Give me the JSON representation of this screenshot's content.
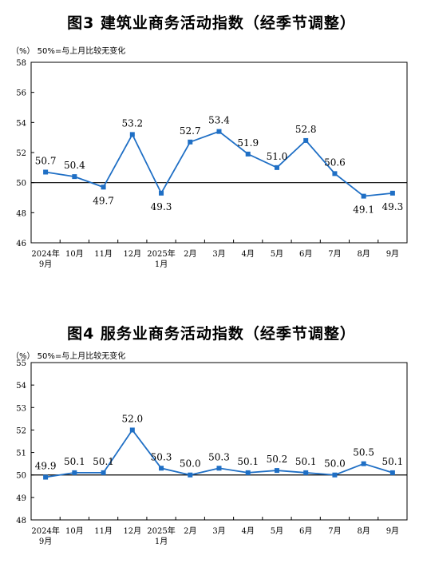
{
  "chart_data": [
    {
      "type": "line",
      "title": "图3 建筑业商务活动指数（经季节调整）",
      "note": "（%） 50%=与上月比较无变化",
      "categories": [
        "2024年\n9月",
        "10月",
        "11月",
        "12月",
        "2025年\n1月",
        "2月",
        "3月",
        "4月",
        "5月",
        "6月",
        "7月",
        "8月",
        "9月"
      ],
      "values": [
        50.7,
        50.4,
        49.7,
        53.2,
        49.3,
        52.7,
        53.4,
        51.9,
        51.0,
        52.8,
        50.6,
        49.1,
        49.3
      ],
      "value_labels": [
        "50.7",
        "50.4",
        "49.7",
        "53.2",
        "49.3",
        "52.7",
        "53.4",
        "51.9",
        "51.0",
        "52.8",
        "50.6",
        "49.1",
        "49.3"
      ],
      "yticks": [
        46,
        48,
        50,
        52,
        54,
        56,
        58
      ],
      "ylim": [
        46,
        58
      ],
      "reference_line": 50,
      "line_color": "#1f6fc5",
      "grid": false
    },
    {
      "type": "line",
      "title": "图4 服务业商务活动指数（经季节调整）",
      "note": "（%） 50%=与上月比较无变化",
      "categories": [
        "2024年\n9月",
        "10月",
        "11月",
        "12月",
        "2025年\n1月",
        "2月",
        "3月",
        "4月",
        "5月",
        "6月",
        "7月",
        "8月",
        "9月"
      ],
      "values": [
        49.9,
        50.1,
        50.1,
        52.0,
        50.3,
        50.0,
        50.3,
        50.1,
        50.2,
        50.1,
        50.0,
        50.5,
        50.1
      ],
      "value_labels": [
        "49.9",
        "50.1",
        "50.1",
        "52.0",
        "50.3",
        "50.0",
        "50.3",
        "50.1",
        "50.2",
        "50.1",
        "50.0",
        "50.5",
        "50.1"
      ],
      "yticks": [
        48,
        49,
        50,
        51,
        52,
        53,
        54,
        55
      ],
      "ylim": [
        48,
        55
      ],
      "reference_line": 50,
      "line_color": "#1f6fc5",
      "grid": false
    }
  ]
}
